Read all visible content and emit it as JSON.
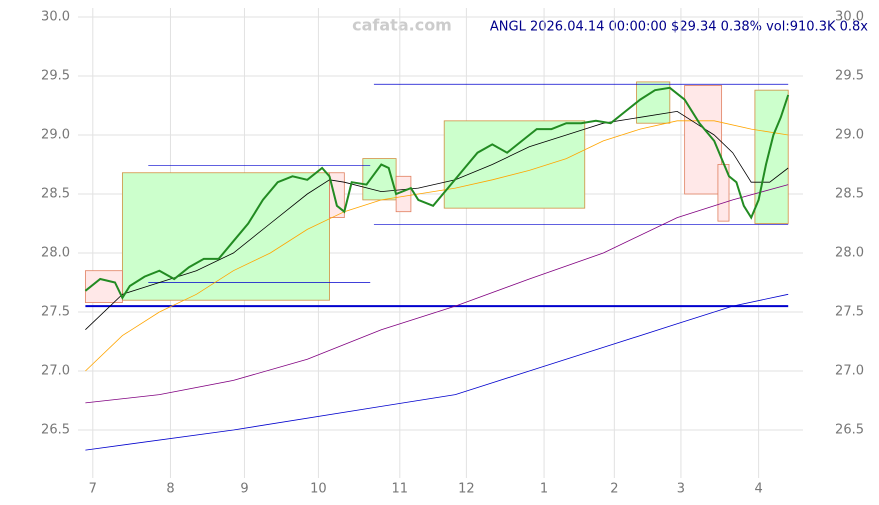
{
  "chart_data": {
    "type": "line",
    "title": "ANGL 2026.04.14 00:00:00 $29.34 0.38% vol:910.3K 0.8x",
    "watermark": "cafata.com",
    "xlim": [
      -2,
      194
    ],
    "ylim": [
      26.1,
      30.1
    ],
    "xticks": [
      {
        "value": 2,
        "label": "7"
      },
      {
        "value": 23,
        "label": "8"
      },
      {
        "value": 43,
        "label": "9"
      },
      {
        "value": 63,
        "label": "10"
      },
      {
        "value": 85,
        "label": "11"
      },
      {
        "value": 103,
        "label": "12"
      },
      {
        "value": 124,
        "label": "1"
      },
      {
        "value": 143,
        "label": "2"
      },
      {
        "value": 161,
        "label": "3"
      },
      {
        "value": 182,
        "label": "4"
      }
    ],
    "yticks": [
      {
        "value": 26.5,
        "label": "26.5"
      },
      {
        "value": 27,
        "label": "27.0"
      },
      27.5,
      {
        "value": 28,
        "label": "28.0"
      },
      28.5,
      {
        "value": 29,
        "label": "29.0"
      },
      29.5,
      {
        "value": 30,
        "label": "30.0"
      }
    ],
    "grid": true,
    "zones": [
      {
        "x": [
          10,
          66
        ],
        "y": [
          27.6,
          28.68
        ],
        "color": "#ccffcc"
      },
      {
        "x": [
          75,
          84
        ],
        "y": [
          28.45,
          28.8
        ],
        "color": "#ccffcc"
      },
      {
        "x": [
          97,
          135
        ],
        "y": [
          28.38,
          29.12
        ],
        "color": "#ccffcc"
      },
      {
        "x": [
          149,
          158
        ],
        "y": [
          29.1,
          29.45
        ],
        "color": "#ccffcc"
      },
      {
        "x": [
          181,
          190
        ],
        "y": [
          28.25,
          29.38
        ],
        "color": "#ccffcc"
      },
      {
        "x": [
          0,
          10
        ],
        "y": [
          27.58,
          27.85
        ],
        "color": "#ffe8e8"
      },
      {
        "x": [
          66,
          70
        ],
        "y": [
          28.3,
          28.68
        ],
        "color": "#ffe8e8"
      },
      {
        "x": [
          84,
          88
        ],
        "y": [
          28.35,
          28.65
        ],
        "color": "#ffe8e8"
      },
      {
        "x": [
          162,
          172
        ],
        "y": [
          28.5,
          29.42
        ],
        "color": "#ffe8e8"
      },
      {
        "x": [
          171,
          174
        ],
        "y": [
          28.27,
          28.75
        ],
        "color": "#ffe8e8"
      }
    ],
    "levels": [
      {
        "x": [
          17,
          77
        ],
        "y": 28.74
      },
      {
        "x": [
          17,
          77
        ],
        "y": 27.75
      },
      {
        "x": [
          78,
          190
        ],
        "y": 29.43
      },
      {
        "x": [
          78,
          190
        ],
        "y": 28.24
      },
      {
        "x": [
          0,
          190
        ],
        "y": 27.55
      }
    ],
    "series": [
      {
        "name": "price",
        "color": "#228b22",
        "width": 2,
        "x": [
          0,
          4,
          8,
          10,
          12,
          16,
          20,
          24,
          28,
          32,
          36,
          40,
          44,
          48,
          52,
          56,
          60,
          64,
          66,
          68,
          70,
          72,
          76,
          80,
          82,
          84,
          88,
          90,
          94,
          98,
          102,
          106,
          110,
          114,
          118,
          122,
          126,
          130,
          134,
          138,
          142,
          146,
          150,
          154,
          158,
          162,
          166,
          170,
          174,
          176,
          178,
          180,
          182,
          184,
          186,
          188,
          190
        ],
        "values": [
          27.68,
          27.78,
          27.75,
          27.62,
          27.72,
          27.8,
          27.85,
          27.78,
          27.88,
          27.95,
          27.95,
          28.1,
          28.25,
          28.45,
          28.6,
          28.65,
          28.62,
          28.72,
          28.65,
          28.4,
          28.35,
          28.6,
          28.58,
          28.75,
          28.72,
          28.5,
          28.55,
          28.45,
          28.4,
          28.55,
          28.7,
          28.85,
          28.92,
          28.85,
          28.95,
          29.05,
          29.05,
          29.1,
          29.1,
          29.12,
          29.1,
          29.2,
          29.3,
          29.38,
          29.4,
          29.3,
          29.1,
          28.95,
          28.65,
          28.6,
          28.4,
          28.3,
          28.45,
          28.75,
          29.0,
          29.15,
          29.34
        ]
      },
      {
        "name": "ma20",
        "color": "#000000",
        "width": 0.8,
        "x": [
          0,
          10,
          20,
          30,
          40,
          50,
          60,
          66,
          70,
          80,
          90,
          100,
          110,
          120,
          130,
          140,
          150,
          160,
          165,
          170,
          175,
          180,
          185,
          190
        ],
        "values": [
          27.35,
          27.65,
          27.75,
          27.85,
          28.0,
          28.25,
          28.5,
          28.62,
          28.6,
          28.52,
          28.55,
          28.62,
          28.75,
          28.9,
          29.0,
          29.1,
          29.15,
          29.2,
          29.1,
          29.0,
          28.85,
          28.6,
          28.6,
          28.72
        ]
      },
      {
        "name": "ma50",
        "color": "#ffa500",
        "width": 0.8,
        "x": [
          0,
          10,
          20,
          30,
          40,
          50,
          60,
          70,
          80,
          90,
          100,
          110,
          120,
          130,
          140,
          150,
          160,
          170,
          180,
          190
        ],
        "values": [
          27.0,
          27.3,
          27.5,
          27.65,
          27.85,
          28.0,
          28.2,
          28.35,
          28.45,
          28.5,
          28.55,
          28.62,
          28.7,
          28.8,
          28.95,
          29.05,
          29.12,
          29.12,
          29.05,
          29.0
        ]
      },
      {
        "name": "ma100",
        "color": "#800080",
        "width": 0.8,
        "x": [
          0,
          20,
          40,
          60,
          80,
          100,
          120,
          140,
          160,
          175,
          190
        ],
        "values": [
          26.73,
          26.8,
          26.92,
          27.1,
          27.35,
          27.55,
          27.78,
          28.0,
          28.3,
          28.45,
          28.58
        ]
      },
      {
        "name": "ma200",
        "color": "#0000cd",
        "width": 0.8,
        "x": [
          0,
          40,
          80,
          100,
          120,
          140,
          160,
          175,
          190
        ],
        "values": [
          26.33,
          26.5,
          26.7,
          26.8,
          27.0,
          27.2,
          27.4,
          27.55,
          27.65
        ]
      }
    ]
  }
}
